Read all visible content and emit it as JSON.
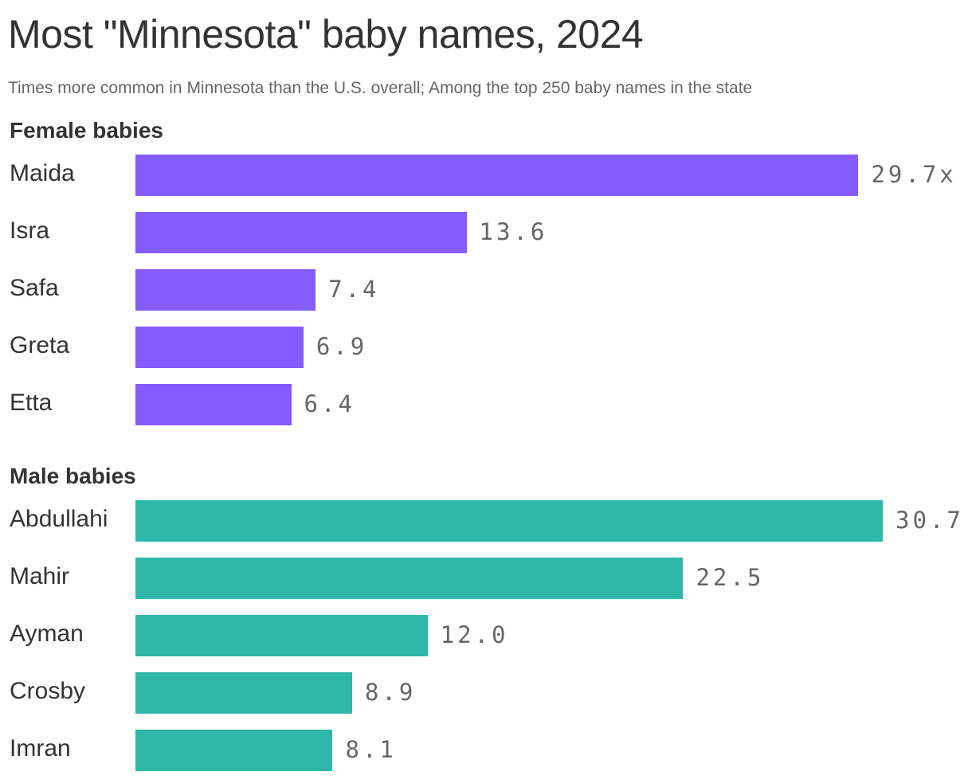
{
  "title": "Most \"Minnesota\" baby names, 2024",
  "subtitle": "Times more common in Minnesota than the U.S. overall; Among the top 250 baby names in the state",
  "chart_data": {
    "type": "bar",
    "orientation": "horizontal",
    "title": "Most \"Minnesota\" baby names, 2024",
    "subtitle": "Times more common in Minnesota than the U.S. overall; Among the top 250 baby names in the state",
    "xlim": [
      0,
      30.7
    ],
    "grid": false,
    "groups": [
      {
        "name": "Female babies",
        "color": "#855cff",
        "categories": [
          "Maida",
          "Isra",
          "Safa",
          "Greta",
          "Etta"
        ],
        "values": [
          29.7,
          13.6,
          7.4,
          6.9,
          6.4
        ],
        "value_labels": [
          "29.7x",
          "13.6",
          "7.4",
          "6.9",
          "6.4"
        ]
      },
      {
        "name": "Male babies",
        "color": "#2fb8aa",
        "categories": [
          "Abdullahi",
          "Mahir",
          "Ayman",
          "Crosby",
          "Imran"
        ],
        "values": [
          30.7,
          22.5,
          12.0,
          8.9,
          8.1
        ],
        "value_labels": [
          "30.7",
          "22.5",
          "12.0",
          "8.9",
          "8.1"
        ]
      }
    ]
  }
}
